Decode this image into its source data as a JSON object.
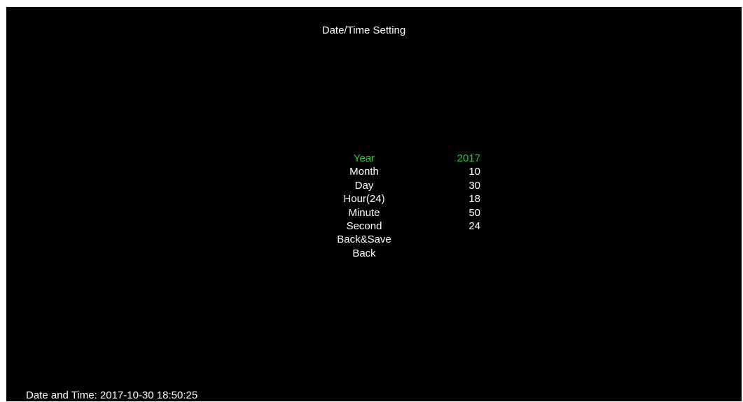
{
  "screen": {
    "title": "Date/Time Setting",
    "background_color": "#000000",
    "text_color": "#ffffff",
    "highlight_color": "#22cc33"
  },
  "menu": {
    "selected": "Year",
    "items": [
      {
        "label": "Year",
        "value": "2017"
      },
      {
        "label": "Month",
        "value": "10"
      },
      {
        "label": "Day",
        "value": "30"
      },
      {
        "label": "Hour(24)",
        "value": "18"
      },
      {
        "label": "Minute",
        "value": "50"
      },
      {
        "label": "Second",
        "value": "24"
      },
      {
        "label": "Back&Save",
        "value": ""
      },
      {
        "label": "Back",
        "value": ""
      }
    ]
  },
  "status": {
    "text": "Date and Time: 2017-10-30 18:50:25"
  }
}
